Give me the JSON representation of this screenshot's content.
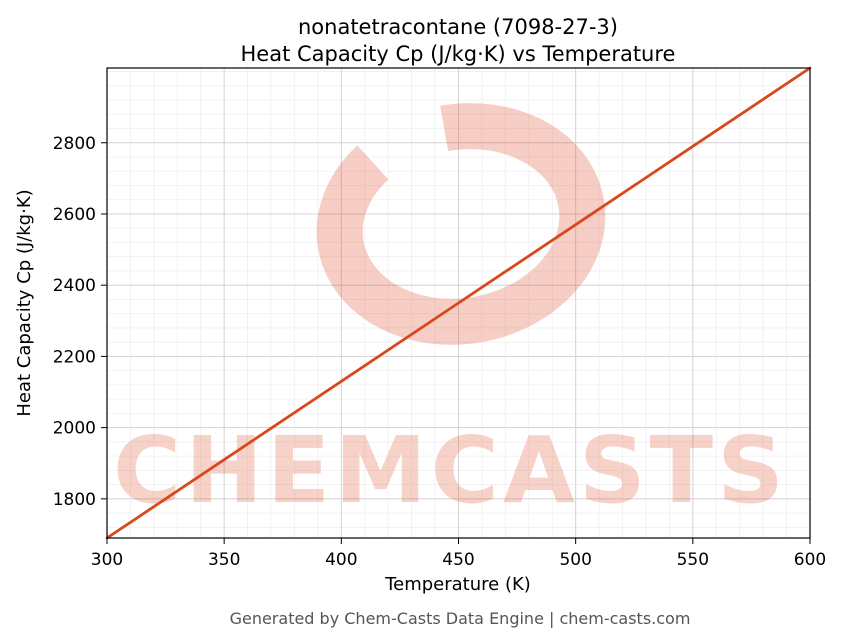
{
  "chart_data": {
    "type": "line",
    "title": "nonatetracontane (7098-27-3)",
    "subtitle": "Heat Capacity Cp (J/kg·K) vs Temperature",
    "xlabel": "Temperature (K)",
    "ylabel": "Heat Capacity Cp (J/kg·K)",
    "series": [
      {
        "name": "Heat Capacity Cp",
        "x": [
          300,
          350,
          400,
          450,
          500,
          550,
          600
        ],
        "values": [
          1690,
          1910,
          2130,
          2350,
          2570,
          2790,
          3010
        ]
      }
    ],
    "xlim": [
      300,
      600
    ],
    "ylim": [
      1690,
      3010
    ],
    "xticks": [
      300,
      350,
      400,
      450,
      500,
      550,
      600
    ],
    "yticks": [
      1800,
      2000,
      2200,
      2400,
      2600,
      2800
    ],
    "x_minor_step": 10,
    "y_minor_step": 40,
    "grid": true,
    "legend": "none",
    "line_color": "#d9481c"
  },
  "watermark": {
    "text": "CHEMCASTS",
    "color": "#e05030"
  },
  "footer": {
    "text": "Generated by Chem-Casts Data Engine | chem-casts.com"
  }
}
